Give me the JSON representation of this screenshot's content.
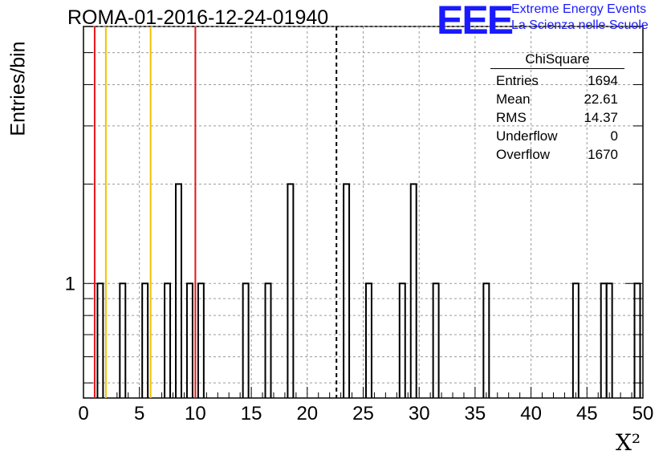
{
  "header": {
    "title": "ROMA-01-2016-12-24-01940",
    "logo_text": "EEE",
    "logo_line1": "Extreme Energy Events",
    "logo_line2": "La Scienza nelle Scuole"
  },
  "stats": {
    "name": "ChiSquare",
    "rows": [
      {
        "label": "Entries",
        "value": "1694"
      },
      {
        "label": "Mean",
        "value": "22.61"
      },
      {
        "label": "RMS",
        "value": "14.37"
      },
      {
        "label": "Underflow",
        "value": "0"
      },
      {
        "label": "Overflow",
        "value": "1670"
      }
    ]
  },
  "chart_data": {
    "type": "bar",
    "histogram": true,
    "xlabel": "X²",
    "ylabel": "Entries/bin",
    "xlim": [
      0,
      50
    ],
    "ylim": [
      0.45,
      6
    ],
    "log_y": true,
    "grid": true,
    "x_ticks": [
      "0",
      "5",
      "10",
      "15",
      "20",
      "25",
      "30",
      "35",
      "40",
      "45",
      "50"
    ],
    "y_tick_labels": [
      "1"
    ],
    "bin_width": 0.5,
    "bins": [
      {
        "x": 1.5,
        "count": 1
      },
      {
        "x": 3.5,
        "count": 1
      },
      {
        "x": 5.5,
        "count": 1
      },
      {
        "x": 7.5,
        "count": 1
      },
      {
        "x": 8.5,
        "count": 2
      },
      {
        "x": 9.5,
        "count": 1
      },
      {
        "x": 10.5,
        "count": 1
      },
      {
        "x": 14.5,
        "count": 1
      },
      {
        "x": 16.5,
        "count": 1
      },
      {
        "x": 18.5,
        "count": 2
      },
      {
        "x": 23.5,
        "count": 2
      },
      {
        "x": 25.5,
        "count": 1
      },
      {
        "x": 28.5,
        "count": 1
      },
      {
        "x": 29.5,
        "count": 2
      },
      {
        "x": 31.5,
        "count": 1
      },
      {
        "x": 36,
        "count": 1
      },
      {
        "x": 44,
        "count": 1
      },
      {
        "x": 46.5,
        "count": 1
      },
      {
        "x": 47,
        "count": 1
      },
      {
        "x": 49.5,
        "count": 1
      }
    ],
    "vertical_lines": [
      {
        "x": 1,
        "color": "#e8141b",
        "style": "solid"
      },
      {
        "x": 2,
        "color": "#f2c100",
        "style": "solid"
      },
      {
        "x": 6,
        "color": "#f2c100",
        "style": "solid"
      },
      {
        "x": 10,
        "color": "#e8141b",
        "style": "solid"
      },
      {
        "x": 22.61,
        "color": "#000000",
        "style": "dashed"
      }
    ]
  }
}
